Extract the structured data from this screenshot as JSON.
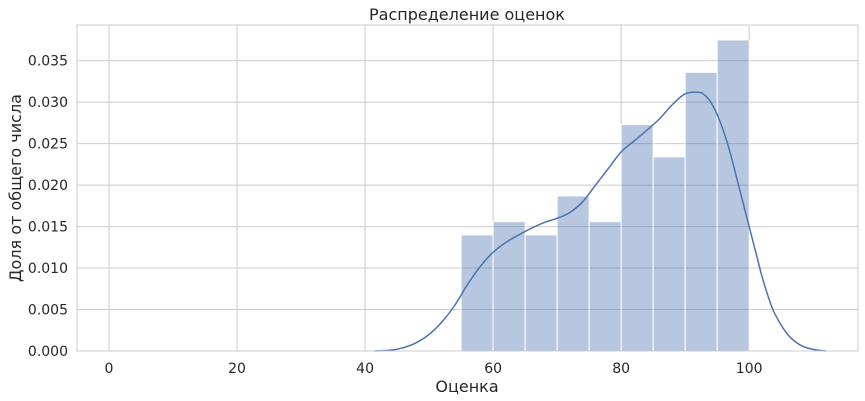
{
  "chart_data": {
    "type": "bar",
    "title": "Распределение оценок",
    "xlabel": "Оценка",
    "ylabel": "Доля от общего числа",
    "xlim": [
      -5,
      117
    ],
    "ylim": [
      0,
      0.0393
    ],
    "xticks": [
      0,
      20,
      40,
      60,
      80,
      100
    ],
    "yticks": [
      0.0,
      0.005,
      0.01,
      0.015,
      0.02,
      0.025,
      0.03,
      0.035
    ],
    "ytick_labels": [
      "0.000",
      "0.005",
      "0.010",
      "0.015",
      "0.020",
      "0.025",
      "0.030",
      "0.035"
    ],
    "grid": true,
    "bins": [
      {
        "x0": 55,
        "x1": 60,
        "value": 0.014
      },
      {
        "x0": 60,
        "x1": 65,
        "value": 0.0156
      },
      {
        "x0": 65,
        "x1": 70,
        "value": 0.014
      },
      {
        "x0": 70,
        "x1": 75,
        "value": 0.0187
      },
      {
        "x0": 75,
        "x1": 80,
        "value": 0.0156
      },
      {
        "x0": 80,
        "x1": 85,
        "value": 0.0273
      },
      {
        "x0": 85,
        "x1": 90,
        "value": 0.0234
      },
      {
        "x0": 90,
        "x1": 95,
        "value": 0.0336
      },
      {
        "x0": 95,
        "x1": 100,
        "value": 0.0375
      }
    ],
    "kde": {
      "x": [
        41.5,
        44,
        46,
        48,
        50,
        52,
        54,
        56,
        58,
        60,
        62,
        64,
        66,
        68,
        70,
        72,
        74,
        76,
        78,
        80,
        82,
        84,
        86,
        88,
        90,
        92,
        93,
        94,
        95,
        96,
        97,
        98,
        99,
        100,
        101,
        102,
        103,
        104,
        106,
        108,
        110,
        112
      ],
      "y": [
        0.0,
        0.0001,
        0.0004,
        0.001,
        0.002,
        0.0035,
        0.0055,
        0.008,
        0.0102,
        0.0119,
        0.0131,
        0.014,
        0.0148,
        0.0155,
        0.016,
        0.0167,
        0.018,
        0.02,
        0.022,
        0.024,
        0.0253,
        0.0266,
        0.028,
        0.0297,
        0.031,
        0.0312,
        0.0309,
        0.03,
        0.0285,
        0.0265,
        0.024,
        0.021,
        0.018,
        0.015,
        0.012,
        0.009,
        0.0065,
        0.0045,
        0.002,
        0.0007,
        0.0002,
        0.0
      ]
    },
    "colors": {
      "bar_fill": "#4c72b0",
      "bar_opacity": 0.4,
      "bar_edge": "#ffffff",
      "kde_line": "#4c72b0",
      "grid": "#cccccc",
      "axes_edge": "#cccccc"
    }
  }
}
